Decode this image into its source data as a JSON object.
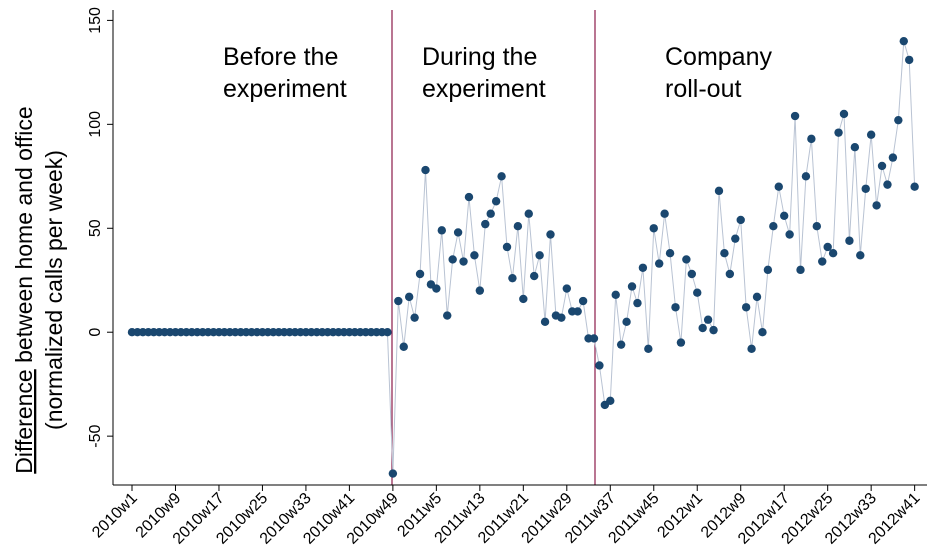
{
  "chart_data": {
    "type": "line",
    "ylabel": {
      "emphasis": "Difference",
      "rest": "between home and office",
      "line2": "(normalized calls per week)"
    },
    "annotations": [
      {
        "lines": [
          "Before the",
          "experiment"
        ]
      },
      {
        "lines": [
          "During the",
          "experiment"
        ]
      },
      {
        "lines": [
          "Company",
          "roll-out"
        ]
      }
    ],
    "categories": [
      "2010w1",
      null,
      null,
      null,
      null,
      null,
      null,
      null,
      "2010w9",
      null,
      null,
      null,
      null,
      null,
      null,
      null,
      "2010w17",
      null,
      null,
      null,
      null,
      null,
      null,
      null,
      "2010w25",
      null,
      null,
      null,
      null,
      null,
      null,
      null,
      "2010w33",
      null,
      null,
      null,
      null,
      null,
      null,
      null,
      "2010w41",
      null,
      null,
      null,
      null,
      null,
      null,
      null,
      "2010w49",
      null,
      null,
      null,
      null,
      null,
      null,
      null,
      "2011w5",
      null,
      null,
      null,
      null,
      null,
      null,
      null,
      "2011w13",
      null,
      null,
      null,
      null,
      null,
      null,
      null,
      "2011w21",
      null,
      null,
      null,
      null,
      null,
      null,
      null,
      "2011w29",
      null,
      null,
      null,
      null,
      null,
      null,
      null,
      "2011w37",
      null,
      null,
      null,
      null,
      null,
      null,
      null,
      "2011w45",
      null,
      null,
      null,
      null,
      null,
      null,
      null,
      "2012w1",
      null,
      null,
      null,
      null,
      null,
      null,
      null,
      "2012w9",
      null,
      null,
      null,
      null,
      null,
      null,
      null,
      "2012w17",
      null,
      null,
      null,
      null,
      null,
      null,
      null,
      "2012w25",
      null,
      null,
      null,
      null,
      null,
      null,
      null,
      "2012w33",
      null,
      null,
      null,
      null,
      null,
      null,
      null,
      "2012w41"
    ],
    "values": [
      0,
      0,
      0,
      0,
      0,
      0,
      0,
      0,
      0,
      0,
      0,
      0,
      0,
      0,
      0,
      0,
      0,
      0,
      0,
      0,
      0,
      0,
      0,
      0,
      0,
      0,
      0,
      0,
      0,
      0,
      0,
      0,
      0,
      0,
      0,
      0,
      0,
      0,
      0,
      0,
      0,
      0,
      0,
      0,
      0,
      0,
      0,
      0,
      -68,
      15,
      -7,
      17,
      7,
      28,
      78,
      23,
      21,
      49,
      8,
      35,
      48,
      34,
      65,
      37,
      20,
      52,
      57,
      63,
      75,
      41,
      26,
      51,
      16,
      57,
      27,
      37,
      5,
      47,
      8,
      7,
      21,
      10,
      10,
      15,
      -3,
      -3,
      -16,
      -35,
      -33,
      18,
      -6,
      5,
      22,
      14,
      31,
      -8,
      50,
      33,
      57,
      38,
      12,
      -5,
      35,
      28,
      19,
      2,
      6,
      1,
      68,
      38,
      28,
      45,
      54,
      12,
      -8,
      17,
      0,
      30,
      51,
      70,
      56,
      47,
      104,
      30,
      75,
      93,
      51,
      34,
      41,
      38,
      96,
      105,
      44,
      89,
      37,
      69,
      95,
      61,
      80,
      71,
      84,
      102,
      140,
      131,
      70
    ],
    "color": "#1a476f",
    "line_color": "#b9c3d3",
    "ylim": [
      -73.5,
      155
    ],
    "yticks": [
      -50,
      0,
      50,
      100,
      150
    ]
  }
}
